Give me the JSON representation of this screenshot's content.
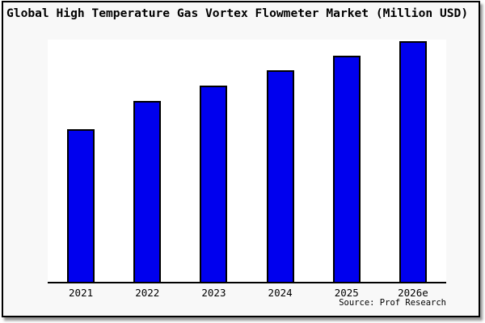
{
  "title": "Global High Temperature Gas Vortex Flowmeter Market (Million USD)",
  "source": "Source: Prof Research",
  "colors": {
    "bar_fill": "#0000ee",
    "bar_border": "#000000",
    "frame_background": "#f8f8f8",
    "plot_background": "#ffffff",
    "axis": "#000000",
    "text": "#000000"
  },
  "chart_data": {
    "type": "bar",
    "categories": [
      "2021",
      "2022",
      "2023",
      "2024",
      "2025",
      "2026e"
    ],
    "values": [
      63.4,
      75.2,
      81.5,
      87.9,
      94.0,
      100.0
    ],
    "title": "Global High Temperature Gas Vortex Flowmeter Market (Million USD)",
    "xlabel": "",
    "ylabel": "",
    "ylim": [
      0,
      100.7
    ],
    "y_axis_visible": false,
    "grid": false,
    "legend": false,
    "source_note": "Source: Prof Research",
    "note": "Y-axis has no tick labels in the image; values are relative bar heights with tallest bar (2026e) = 100"
  }
}
